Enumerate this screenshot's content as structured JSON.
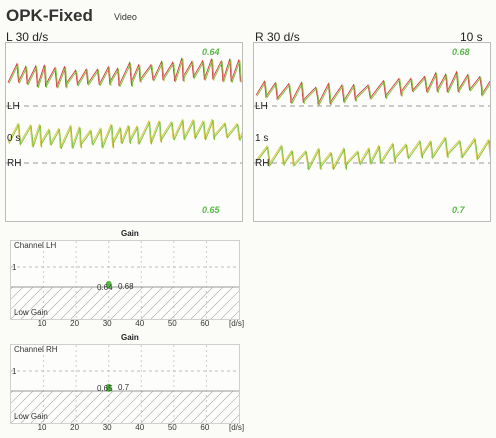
{
  "header": {
    "title": "OPK-Fixed",
    "subtitle": "Video"
  },
  "left": {
    "speed": "L 30 d/s",
    "top_value": "0.64",
    "bottom_value": "0.65",
    "ch_top": "LH",
    "ch_bottom": "RH",
    "time": "0 s"
  },
  "right": {
    "speed": "R 30 d/s",
    "duration": "10 s",
    "top_value": "0.68",
    "bottom_value": "0.7",
    "ch_top": "LH",
    "ch_bottom": "RH",
    "time": "1 s"
  },
  "gain1": {
    "title": "Gain",
    "channel": "Channel LH",
    "ylabel": "1",
    "low": "Low Gain",
    "unit": "[d/s]",
    "p1": "0.64",
    "p2": "0.68"
  },
  "gain2": {
    "title": "Gain",
    "channel": "Channel RH",
    "ylabel": "1",
    "low": "Low Gain",
    "unit": "[d/s]",
    "p1": "0.65",
    "p2": "0.7"
  },
  "xticks": [
    "10",
    "20",
    "30",
    "40",
    "50",
    "60"
  ],
  "colors": {
    "red": "#d23a3a",
    "green": "#7dbf3a",
    "yellow": "#d8c63a",
    "value": "#59b84a"
  },
  "chart_data": [
    {
      "type": "scatter",
      "title": "Gain",
      "xlabel": "[d/s]",
      "xlim": [
        0,
        70
      ],
      "ticks": [
        10,
        20,
        30,
        40,
        50,
        60
      ],
      "series": [
        {
          "values": [
            {
              "x": 30,
              "y": 0.64
            },
            {
              "x": 30,
              "y": 0.68
            }
          ]
        }
      ]
    },
    {
      "type": "scatter",
      "title": "Gain",
      "xlabel": "[d/s]",
      "xlim": [
        0,
        70
      ],
      "ticks": [
        10,
        20,
        30,
        40,
        50,
        60
      ],
      "series": [
        {
          "values": [
            {
              "x": 30,
              "y": 0.65
            },
            {
              "x": 30,
              "y": 0.7
            }
          ]
        }
      ]
    }
  ]
}
